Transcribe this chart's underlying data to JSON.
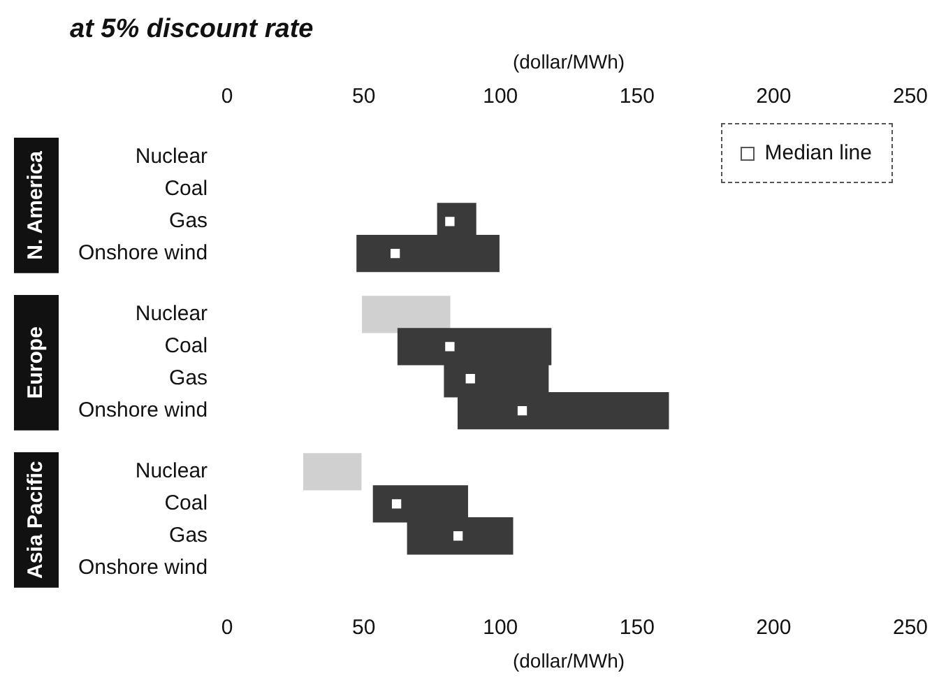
{
  "chart_data": {
    "type": "bar",
    "orientation": "horizontal",
    "title": "at 5% discount rate",
    "xlabel": "(dollar/MWh)",
    "x2label": "(dollar/MWh)",
    "categories": [
      "Nuclear",
      "Coal",
      "Gas",
      "Onshore wind",
      "Nuclear",
      "Coal",
      "Gas",
      "Onshore wind",
      "Nuclear",
      "Coal",
      "Gas",
      "Onshore wind"
    ],
    "annotations": [
      "N. America",
      "Europe",
      "Asia Pacific"
    ],
    "xlim": [
      0,
      250
    ],
    "xticks": [
      0,
      50,
      100,
      150,
      200,
      250
    ],
    "x2lim": [
      0,
      250
    ],
    "x2ticks": [
      0,
      50,
      100,
      150,
      200,
      250
    ],
    "legend": "top right",
    "series": [
      {
        "colors": [
          "#d0d0d0",
          "#3a3a3a",
          "#3a3a3a",
          "#3a3a3a",
          "#d0d0d0",
          "#3a3a3a",
          "#3a3a3a",
          "#3a3a3a",
          "#d0d0d0",
          "#3a3a3a",
          "#3a3a3a",
          "#3a3a3a"
        ],
        "base": [
          null,
          null,
          77,
          47.5,
          49.5,
          62.5,
          79.5,
          84.5,
          28,
          53.5,
          66,
          null
        ],
        "values": [
          null,
          null,
          14,
          52,
          32,
          56,
          38,
          77,
          21,
          34.5,
          38.5,
          null
        ]
      },
      {
        "type": "scatter",
        "name": "Median line",
        "color": "#ffffff",
        "marker": "square",
        "values": [
          null,
          null,
          81.5,
          61.5,
          null,
          81.5,
          89,
          108,
          null,
          62,
          84.5,
          null
        ]
      }
    ]
  }
}
